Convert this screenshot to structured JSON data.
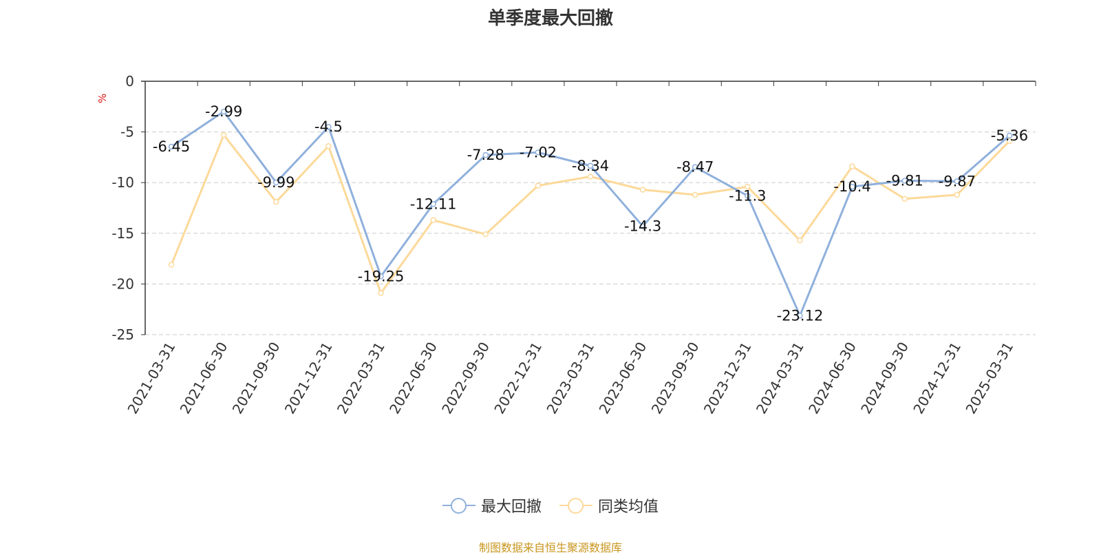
{
  "chart_data": {
    "type": "line",
    "title": "单季度最大回撤",
    "ylabel": "%",
    "ylim": [
      -25,
      0
    ],
    "yticks": [
      0,
      -5,
      -10,
      -15,
      -20,
      -25
    ],
    "grid": true,
    "legend_position": "bottom",
    "categories": [
      "2021-03-31",
      "2021-06-30",
      "2021-09-30",
      "2021-12-31",
      "2022-03-31",
      "2022-06-30",
      "2022-09-30",
      "2022-12-31",
      "2023-03-31",
      "2023-06-30",
      "2023-09-30",
      "2023-12-31",
      "2024-03-31",
      "2024-06-30",
      "2024-09-30",
      "2024-12-31",
      "2025-03-31"
    ],
    "series": [
      {
        "name": "最大回撤",
        "color": "#8fb0dc",
        "show_labels": true,
        "values": [
          -6.45,
          -2.99,
          -9.99,
          -4.5,
          -19.25,
          -12.11,
          -7.28,
          -7.02,
          -8.34,
          -14.3,
          -8.47,
          -11.3,
          -23.12,
          -10.4,
          -9.81,
          -9.87,
          -5.36
        ]
      },
      {
        "name": "同类均值",
        "color": "#fcd99a",
        "show_labels": false,
        "values": [
          -18.1,
          -5.3,
          -11.9,
          -6.4,
          -20.9,
          -13.7,
          -15.1,
          -10.3,
          -9.4,
          -10.7,
          -11.2,
          -10.4,
          -15.7,
          -8.4,
          -11.6,
          -11.2,
          -5.9
        ]
      }
    ]
  },
  "source_note": "制图数据来自恒生聚源数据库"
}
